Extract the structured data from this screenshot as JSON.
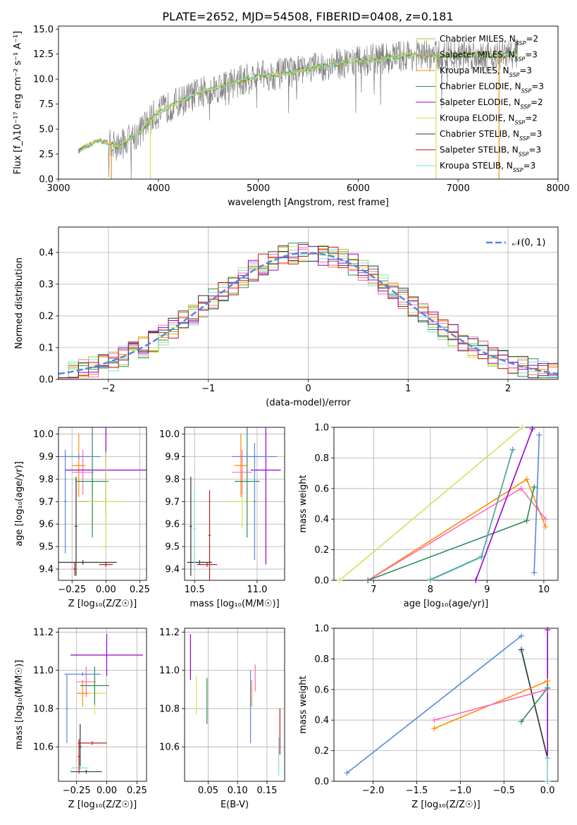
{
  "figure": {
    "title": "PLATE=2652, MJD=54508, FIBERID=0408, z=0.181"
  },
  "colors": {
    "series": [
      "#9acd32",
      "#ff69b4",
      "#ff8c00",
      "#2e8b57",
      "#9400d3",
      "#d4e157",
      "#333333",
      "#b22222",
      "#7fdfdf"
    ],
    "spectrum": "#7f7f7f",
    "gaussian": "#5588dd",
    "grid": "#b0b0b0"
  },
  "chart_data": [
    {
      "id": "spectrum",
      "type": "line",
      "xlabel": "wavelength [Angstrom, rest frame]",
      "ylabel": "Flux [f_λ10⁻¹⁷ erg cm⁻² s⁻¹ A⁻¹]",
      "xlim": [
        3000,
        8000
      ],
      "ylim": [
        0.0,
        15.3
      ],
      "xticks": [
        "3000",
        "4000",
        "5000",
        "6000",
        "7000",
        "8000"
      ],
      "yticks": [
        "0.0",
        "2.5",
        "5.0",
        "7.5",
        "10.0",
        "12.5",
        "15.0"
      ],
      "grid": false,
      "legend_position": "right",
      "data_range": [
        3200,
        7600
      ],
      "series": [
        {
          "name": "Chabrier MILES, N_SSP=2"
        },
        {
          "name": "Salpeter MILES, N_SSP=3"
        },
        {
          "name": "Kroupa MILES, N_SSP=3"
        },
        {
          "name": "Chabrier ELODIE, N_SSP=3"
        },
        {
          "name": "Salpeter ELODIE, N_SSP=2"
        },
        {
          "name": "Kroupa ELODIE, N_SSP=2"
        },
        {
          "name": "Chabrier STELIB, N_SSP=3"
        },
        {
          "name": "Salpeter STELIB, N_SSP=3"
        },
        {
          "name": "Kroupa STELIB, N_SSP=3"
        }
      ],
      "continuum": [
        [
          3200,
          2.8
        ],
        [
          3400,
          3.9
        ],
        [
          3600,
          3.3
        ],
        [
          3800,
          4.6
        ],
        [
          3950,
          6.3
        ],
        [
          4100,
          7.2
        ],
        [
          4400,
          8.6
        ],
        [
          4700,
          9.5
        ],
        [
          5000,
          10.3
        ],
        [
          5300,
          10.6
        ],
        [
          5600,
          11.2
        ],
        [
          5900,
          11.7
        ],
        [
          6200,
          12.0
        ],
        [
          6500,
          12.4
        ],
        [
          6800,
          12.3
        ],
        [
          7100,
          12.5
        ],
        [
          7400,
          12.3
        ],
        [
          7600,
          12.6
        ]
      ],
      "annotations": [
        "N_SSP"
      ]
    },
    {
      "id": "residuals",
      "type": "line",
      "xlabel": "(data-model)/error",
      "ylabel": "Normed distribution",
      "xlim": [
        -2.5,
        2.5
      ],
      "ylim": [
        0.0,
        0.48
      ],
      "xticks": [
        "−2",
        "−1",
        "0",
        "1",
        "2"
      ],
      "yticks": [
        "0.0",
        "0.1",
        "0.2",
        "0.3",
        "0.4"
      ],
      "grid": true,
      "legend_position": "top-right",
      "gaussian_label": "𝒩(0, 1)"
    },
    {
      "id": "age_vs_Z",
      "type": "scatter",
      "xlabel": "Z [log₁₀(Z/Z☉)]",
      "ylabel": "age  [log₁₀(age/yr)]",
      "xlim": [
        -0.35,
        0.3
      ],
      "ylim": [
        9.35,
        10.03
      ],
      "xticks": [
        "−0.25",
        "0.00",
        "0.25"
      ],
      "yticks": [
        "9.4",
        "9.5",
        "9.6",
        "9.7",
        "9.8",
        "9.9",
        "10.0"
      ],
      "grid": true,
      "points": [
        {
          "x": -0.1,
          "y": 9.7,
          "xerr": 0.1,
          "yerr": 0.12,
          "c": 0
        },
        {
          "x": -0.17,
          "y": 9.83,
          "xerr": 0.08,
          "yerr": 0.1,
          "c": 1
        },
        {
          "x": -0.2,
          "y": 9.86,
          "xerr": 0.05,
          "yerr": 0.14,
          "c": 2
        },
        {
          "x": -0.1,
          "y": 9.79,
          "xerr": 0.12,
          "yerr": 0.25,
          "c": 3
        },
        {
          "x": 0.0,
          "y": 9.84,
          "xerr": 0.3,
          "yerr": 0.2,
          "c": 4
        },
        {
          "x": 0.0,
          "y": 9.7,
          "xerr": 0.13,
          "yerr": 0.22,
          "c": 5
        },
        {
          "x": -0.22,
          "y": 9.59,
          "xerr": 0.01,
          "yerr": 0.22,
          "c": 6
        },
        {
          "x": 0.0,
          "y": 9.42,
          "xerr": 0.05,
          "yerr": 0.01,
          "c": 7
        },
        {
          "x": -0.23,
          "y": 9.4,
          "xerr": 0.01,
          "yerr": 0.03,
          "c": 7
        },
        {
          "x": -0.17,
          "y": 9.43,
          "xerr": 0.25,
          "yerr": 0.01,
          "c": 6
        },
        {
          "x": -0.2,
          "y": 9.9,
          "xerr": 0.16,
          "yerr": 0.01,
          "c": "g"
        },
        {
          "x": -0.3,
          "y": 9.7,
          "xerr": 0.01,
          "yerr": 0.23,
          "c": "g"
        }
      ]
    },
    {
      "id": "age_vs_mass",
      "type": "scatter",
      "xlabel": "mass [log₁₀(M/M☉)]",
      "ylabel": "",
      "xlim": [
        10.42,
        11.22
      ],
      "ylim": [
        9.35,
        10.03
      ],
      "xticks": [
        "10.5",
        "11.0"
      ],
      "yticks": [
        "9.4",
        "9.5",
        "9.6",
        "9.7",
        "9.8",
        "9.9",
        "10.0"
      ],
      "grid": true,
      "points": [
        {
          "x": 10.88,
          "y": 9.7,
          "xerr": 0.11,
          "yerr": 0.12,
          "c": 5
        },
        {
          "x": 10.88,
          "y": 9.83,
          "xerr": 0.08,
          "yerr": 0.1,
          "c": 1
        },
        {
          "x": 10.87,
          "y": 9.86,
          "xerr": 0.05,
          "yerr": 0.14,
          "c": 2
        },
        {
          "x": 10.92,
          "y": 9.79,
          "xerr": 0.1,
          "yerr": 0.25,
          "c": 3
        },
        {
          "x": 11.07,
          "y": 9.84,
          "xerr": 0.12,
          "yerr": 0.42,
          "c": 4
        },
        {
          "x": 10.47,
          "y": 9.59,
          "xerr": 0.01,
          "yerr": 0.22,
          "c": 6
        },
        {
          "x": 10.62,
          "y": 9.55,
          "xerr": 0.01,
          "yerr": 0.2,
          "c": 7
        },
        {
          "x": 10.6,
          "y": 9.42,
          "xerr": 0.08,
          "yerr": 0.01,
          "c": 7
        },
        {
          "x": 10.54,
          "y": 9.43,
          "xerr": 0.1,
          "yerr": 0.01,
          "c": 6
        },
        {
          "x": 10.98,
          "y": 9.9,
          "xerr": 0.18,
          "yerr": 0.01,
          "c": "g"
        },
        {
          "x": 10.98,
          "y": 9.7,
          "xerr": 0.01,
          "yerr": 0.26,
          "c": "g"
        },
        {
          "x": 10.5,
          "y": 9.58,
          "xerr": 0.01,
          "yerr": 0.18,
          "c": 8
        }
      ]
    },
    {
      "id": "weight_vs_age",
      "type": "line",
      "xlabel": "age  [log₁₀(age/yr)]",
      "ylabel": "mass weight",
      "xlim": [
        6.3,
        10.25
      ],
      "ylim": [
        0.0,
        1.0
      ],
      "xticks": [
        "7",
        "8",
        "9",
        "10"
      ],
      "yticks": [
        "0.0",
        "0.2",
        "0.4",
        "0.6",
        "0.8",
        "1.0"
      ],
      "grid": true,
      "series": [
        {
          "c": 5,
          "x": [
            6.4,
            9.62
          ],
          "y": [
            0.0,
            1.0
          ]
        },
        {
          "c": 2,
          "x": [
            6.9,
            9.7,
            10.03
          ],
          "y": [
            0.0,
            0.66,
            0.35
          ]
        },
        {
          "c": 1,
          "x": [
            6.9,
            9.6,
            10.03
          ],
          "y": [
            0.0,
            0.6,
            0.4
          ]
        },
        {
          "c": 3,
          "x": [
            6.9,
            9.7,
            9.83
          ],
          "y": [
            0.0,
            0.39,
            0.61
          ]
        },
        {
          "c": 4,
          "x": [
            8.8,
            9.8
          ],
          "y": [
            0.0,
            0.99
          ]
        },
        {
          "c": 8,
          "x": [
            8.0,
            8.9,
            9.45
          ],
          "y": [
            0.0,
            0.15,
            0.85
          ]
        },
        {
          "c": "s",
          "x": [
            8.0,
            8.9,
            9.45
          ],
          "y": [
            0.005,
            0.155,
            0.855
          ]
        },
        {
          "c": "g",
          "x": [
            9.83,
            9.92
          ],
          "y": [
            0.05,
            0.95
          ]
        }
      ]
    },
    {
      "id": "mass_vs_Z",
      "type": "scatter",
      "xlabel": "Z [log₁₀(Z/Z☉)]",
      "ylabel": "mass [log₁₀(M/M☉)]",
      "xlim": [
        -0.4,
        0.33
      ],
      "ylim": [
        10.42,
        11.22
      ],
      "xticks": [
        "−0.25",
        "0.00",
        "0.25"
      ],
      "yticks": [
        "10.6",
        "10.8",
        "11.0",
        "11.2"
      ],
      "grid": true,
      "points": [
        {
          "x": -0.1,
          "y": 10.88,
          "xerr": 0.1,
          "yerr": 0.11,
          "c": 5
        },
        {
          "x": -0.17,
          "y": 10.94,
          "xerr": 0.08,
          "yerr": 0.08,
          "c": 1
        },
        {
          "x": -0.2,
          "y": 10.88,
          "xerr": 0.05,
          "yerr": 0.07,
          "c": 2
        },
        {
          "x": -0.1,
          "y": 10.92,
          "xerr": 0.12,
          "yerr": 0.1,
          "c": 3
        },
        {
          "x": 0.0,
          "y": 11.08,
          "xerr": 0.3,
          "yerr": 0.11,
          "c": 4
        },
        {
          "x": -0.22,
          "y": 10.6,
          "xerr": 0.01,
          "yerr": 0.12,
          "c": 6
        },
        {
          "x": -0.12,
          "y": 10.62,
          "xerr": 0.12,
          "yerr": 0.01,
          "c": 7
        },
        {
          "x": -0.17,
          "y": 10.47,
          "xerr": 0.13,
          "yerr": 0.01,
          "c": 6
        },
        {
          "x": -0.22,
          "y": 10.49,
          "xerr": 0.07,
          "yerr": 0.01,
          "c": 8
        },
        {
          "x": -0.2,
          "y": 10.98,
          "xerr": 0.15,
          "yerr": 0.01,
          "c": "g"
        },
        {
          "x": -0.33,
          "y": 10.8,
          "xerr": 0.01,
          "yerr": 0.18,
          "c": "g"
        },
        {
          "x": -0.23,
          "y": 10.55,
          "xerr": 0.01,
          "yerr": 0.09,
          "c": 7
        }
      ]
    },
    {
      "id": "mass_vs_ebv",
      "type": "scatter",
      "xlabel": "E(B-V)",
      "ylabel": "",
      "xlim": [
        0.01,
        0.18
      ],
      "ylim": [
        10.42,
        11.22
      ],
      "xticks": [
        "0.05",
        "0.10",
        "0.15"
      ],
      "yticks": [
        "10.6",
        "10.8",
        "11.0",
        "11.2"
      ],
      "grid": true,
      "points": [
        {
          "x": 0.02,
          "y": 11.07,
          "xerr": 0,
          "yerr": 0.12,
          "c": 4
        },
        {
          "x": 0.03,
          "y": 10.87,
          "xerr": 0,
          "yerr": 0.1,
          "c": 5
        },
        {
          "x": 0.048,
          "y": 10.84,
          "xerr": 0,
          "yerr": 0.12,
          "c": 3
        },
        {
          "x": 0.122,
          "y": 10.81,
          "xerr": 0,
          "yerr": 0.19,
          "c": "g"
        },
        {
          "x": 0.124,
          "y": 10.88,
          "xerr": 0,
          "yerr": 0.07,
          "c": 2
        },
        {
          "x": 0.13,
          "y": 10.96,
          "xerr": 0,
          "yerr": 0.07,
          "c": 1
        },
        {
          "x": 0.172,
          "y": 10.68,
          "xerr": 0,
          "yerr": 0.12,
          "c": 7
        },
        {
          "x": 0.17,
          "y": 10.55,
          "xerr": 0,
          "yerr": 0.1,
          "c": 8
        }
      ]
    },
    {
      "id": "weight_vs_Z",
      "type": "line",
      "xlabel": "Z [log₁₀(Z/Z☉)]",
      "ylabel": "mass weight",
      "xlim": [
        -2.45,
        0.12
      ],
      "ylim": [
        0.0,
        1.0
      ],
      "xticks": [
        "−2.0",
        "−1.5",
        "−1.0",
        "−0.5",
        "0.0"
      ],
      "yticks": [
        "0.0",
        "0.2",
        "0.4",
        "0.6",
        "0.8",
        "1.0"
      ],
      "grid": true,
      "series": [
        {
          "c": "g",
          "x": [
            -2.3,
            -0.3
          ],
          "y": [
            0.055,
            0.95
          ]
        },
        {
          "c": 8,
          "x": [
            -0.3,
            0.0
          ],
          "y": [
            0.85,
            0.15
          ]
        },
        {
          "c": 6,
          "x": [
            -0.3,
            0.0
          ],
          "y": [
            0.86,
            0.15
          ]
        },
        {
          "c": 2,
          "x": [
            -1.3,
            0.0
          ],
          "y": [
            0.345,
            0.655
          ]
        },
        {
          "c": 1,
          "x": [
            -1.3,
            0.0
          ],
          "y": [
            0.4,
            0.6
          ]
        },
        {
          "c": 3,
          "x": [
            -0.3,
            0.0
          ],
          "y": [
            0.39,
            0.61
          ]
        },
        {
          "c": 5,
          "x": [
            0.0,
            0.0
          ],
          "y": [
            0.0,
            0.99
          ]
        },
        {
          "c": 4,
          "x": [
            0.0,
            0.0
          ],
          "y": [
            0.0,
            0.99
          ]
        },
        {
          "c": 8,
          "x": [
            0.0,
            0.0
          ],
          "y": [
            0.0,
            0.15
          ]
        }
      ]
    }
  ]
}
